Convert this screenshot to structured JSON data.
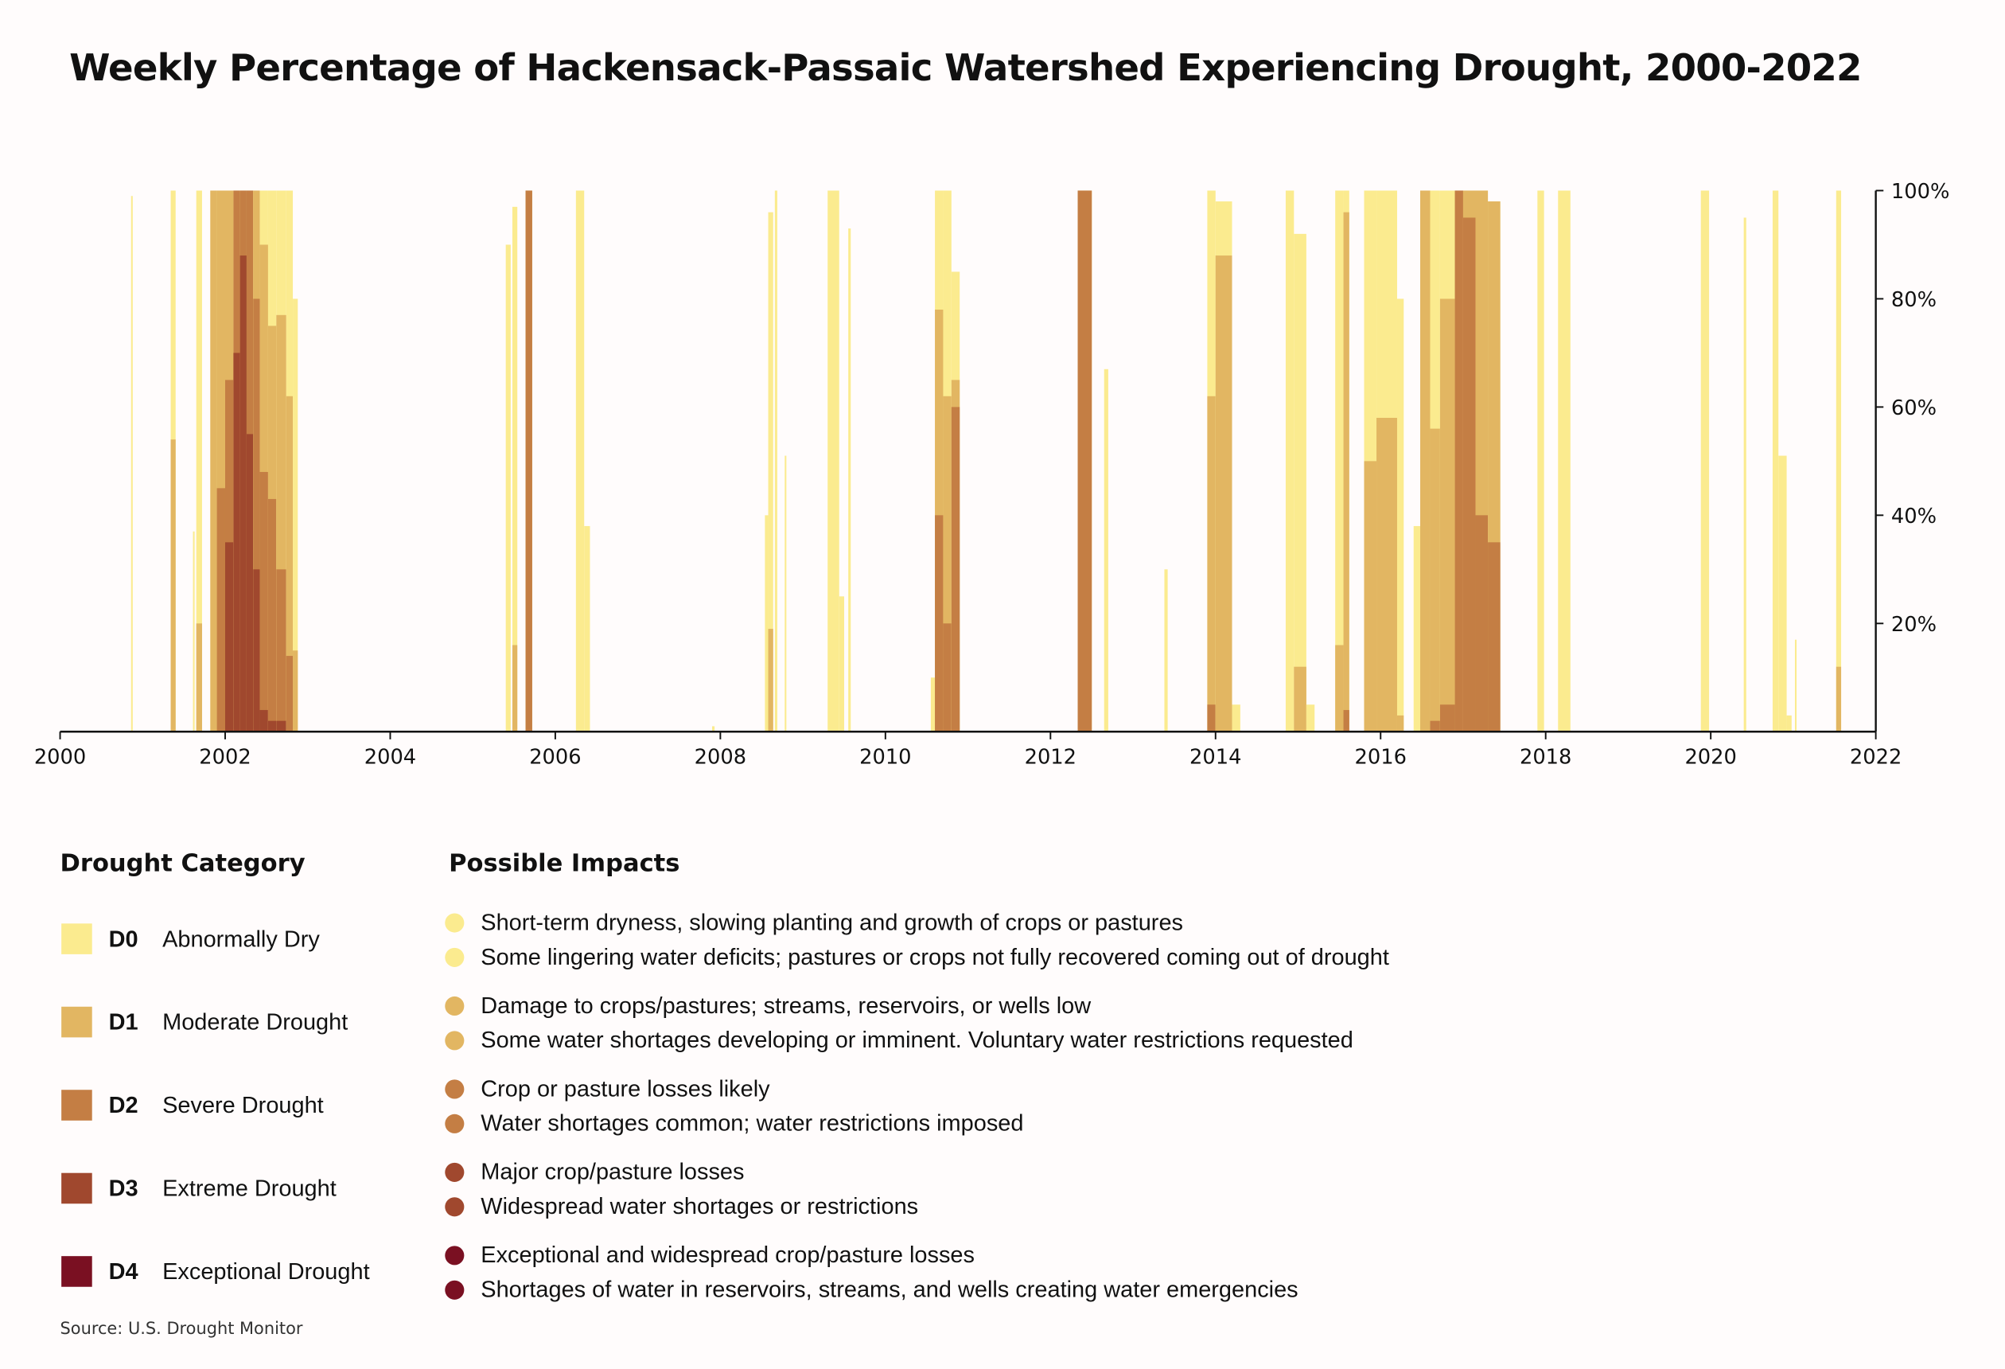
{
  "chart_data": {
    "type": "bar",
    "title": "Weekly Percentage of Hackensack-Passaic Watershed Experiencing Drought, 2000-2022",
    "xlabel": "",
    "ylabel": "",
    "xlim": [
      2000,
      2022
    ],
    "ylim": [
      0,
      100
    ],
    "x_ticks": [
      "2000",
      "2002",
      "2004",
      "2006",
      "2008",
      "2010",
      "2012",
      "2014",
      "2016",
      "2018",
      "2020",
      "2022"
    ],
    "y_ticks": [
      "20%",
      "40%",
      "60%",
      "80%",
      "100%"
    ],
    "y_axis_side": "right",
    "stacking": "overlaid cumulative (percent area in category or worse)",
    "segment_columns": [
      "start_year",
      "end_year",
      "D0",
      "D1",
      "D2",
      "D3",
      "D4"
    ],
    "segments": [
      [
        2000.86,
        2000.88,
        99,
        0,
        0,
        0,
        0
      ],
      [
        2001.34,
        2001.4,
        100,
        54,
        0,
        0,
        0
      ],
      [
        2001.61,
        2001.63,
        37,
        0,
        0,
        0,
        0
      ],
      [
        2001.65,
        2001.72,
        100,
        20,
        0,
        0,
        0
      ],
      [
        2001.82,
        2001.9,
        100,
        100,
        0,
        0,
        0
      ],
      [
        2001.9,
        2002.0,
        100,
        100,
        45,
        0,
        0
      ],
      [
        2002.0,
        2002.1,
        100,
        100,
        65,
        35,
        0
      ],
      [
        2002.1,
        2002.18,
        100,
        100,
        100,
        70,
        0
      ],
      [
        2002.18,
        2002.26,
        100,
        100,
        100,
        88,
        0
      ],
      [
        2002.26,
        2002.34,
        100,
        100,
        100,
        55,
        0
      ],
      [
        2002.34,
        2002.42,
        100,
        100,
        80,
        30,
        0
      ],
      [
        2002.42,
        2002.52,
        100,
        90,
        48,
        4,
        0
      ],
      [
        2002.52,
        2002.62,
        100,
        75,
        43,
        2,
        0
      ],
      [
        2002.62,
        2002.74,
        100,
        77,
        30,
        2,
        0
      ],
      [
        2002.74,
        2002.82,
        100,
        62,
        14,
        0,
        0
      ],
      [
        2002.82,
        2002.88,
        80,
        15,
        0,
        0,
        0
      ],
      [
        2005.4,
        2005.46,
        90,
        0,
        0,
        0,
        0
      ],
      [
        2005.48,
        2005.54,
        97,
        16,
        0,
        0,
        0
      ],
      [
        2005.64,
        2005.72,
        100,
        100,
        100,
        0,
        0
      ],
      [
        2006.25,
        2006.35,
        100,
        0,
        0,
        0,
        0
      ],
      [
        2006.35,
        2006.42,
        38,
        0,
        0,
        0,
        0
      ],
      [
        2007.9,
        2007.93,
        1,
        0,
        0,
        0,
        0
      ],
      [
        2008.54,
        2008.58,
        40,
        0,
        0,
        0,
        0
      ],
      [
        2008.58,
        2008.64,
        96,
        19,
        0,
        0,
        0
      ],
      [
        2008.66,
        2008.69,
        100,
        0,
        0,
        0,
        0
      ],
      [
        2008.78,
        2008.8,
        51,
        0,
        0,
        0,
        0
      ],
      [
        2009.3,
        2009.44,
        100,
        0,
        0,
        0,
        0
      ],
      [
        2009.44,
        2009.5,
        25,
        0,
        0,
        0,
        0
      ],
      [
        2009.55,
        2009.58,
        93,
        0,
        0,
        0,
        0
      ],
      [
        2010.55,
        2010.6,
        10,
        0,
        0,
        0,
        0
      ],
      [
        2010.6,
        2010.7,
        100,
        78,
        40,
        0,
        0
      ],
      [
        2010.7,
        2010.8,
        100,
        62,
        20,
        0,
        0
      ],
      [
        2010.8,
        2010.9,
        85,
        65,
        60,
        0,
        0
      ],
      [
        2012.33,
        2012.5,
        100,
        100,
        100,
        0,
        0
      ],
      [
        2012.65,
        2012.7,
        67,
        0,
        0,
        0,
        0
      ],
      [
        2013.38,
        2013.42,
        30,
        0,
        0,
        0,
        0
      ],
      [
        2013.9,
        2014.0,
        100,
        62,
        5,
        0,
        0
      ],
      [
        2014.0,
        2014.2,
        98,
        88,
        0,
        0,
        0
      ],
      [
        2014.2,
        2014.3,
        5,
        0,
        0,
        0,
        0
      ],
      [
        2014.85,
        2014.95,
        100,
        0,
        0,
        0,
        0
      ],
      [
        2014.95,
        2015.1,
        92,
        12,
        0,
        0,
        0
      ],
      [
        2015.1,
        2015.2,
        5,
        0,
        0,
        0,
        0
      ],
      [
        2015.45,
        2015.55,
        100,
        16,
        0,
        0,
        0
      ],
      [
        2015.55,
        2015.62,
        100,
        96,
        4,
        0,
        0
      ],
      [
        2015.8,
        2015.95,
        100,
        50,
        0,
        0,
        0
      ],
      [
        2015.95,
        2016.2,
        100,
        58,
        0,
        0,
        0
      ],
      [
        2016.2,
        2016.28,
        80,
        3,
        0,
        0,
        0
      ],
      [
        2016.4,
        2016.48,
        38,
        0,
        0,
        0,
        0
      ],
      [
        2016.48,
        2016.6,
        100,
        100,
        0,
        0,
        0
      ],
      [
        2016.6,
        2016.72,
        100,
        56,
        2,
        0,
        0
      ],
      [
        2016.72,
        2016.9,
        100,
        80,
        5,
        0,
        0
      ],
      [
        2016.9,
        2017.0,
        100,
        100,
        100,
        0,
        0
      ],
      [
        2017.0,
        2017.15,
        100,
        100,
        95,
        0,
        0
      ],
      [
        2017.15,
        2017.3,
        100,
        100,
        40,
        0,
        0
      ],
      [
        2017.3,
        2017.45,
        98,
        98,
        35,
        0,
        0
      ],
      [
        2017.9,
        2017.98,
        100,
        0,
        0,
        0,
        0
      ],
      [
        2018.15,
        2018.3,
        100,
        0,
        0,
        0,
        0
      ],
      [
        2019.88,
        2019.98,
        100,
        0,
        0,
        0,
        0
      ],
      [
        2020.4,
        2020.43,
        95,
        0,
        0,
        0,
        0
      ],
      [
        2020.75,
        2020.82,
        100,
        0,
        0,
        0,
        0
      ],
      [
        2020.82,
        2020.92,
        51,
        0,
        0,
        0,
        0
      ],
      [
        2020.92,
        2020.98,
        3,
        0,
        0,
        0,
        0
      ],
      [
        2021.02,
        2021.04,
        17,
        0,
        0,
        0,
        0
      ],
      [
        2021.52,
        2021.58,
        100,
        12,
        0,
        0,
        0
      ]
    ],
    "colors": {
      "D0": "#fbeb8f",
      "D1": "#e2b662",
      "D2": "#c47e44",
      "D3": "#a0482e",
      "D4": "#7a1022"
    }
  },
  "legend": {
    "category_title": "Drought Category",
    "impacts_title": "Possible Impacts",
    "categories": [
      {
        "code": "D0",
        "name": "Abnormally Dry",
        "color": "#fbeb8f",
        "impacts": [
          "Short-term dryness, slowing planting and growth of crops or pastures",
          "Some lingering water deficits; pastures or crops not fully recovered coming out of drought"
        ]
      },
      {
        "code": "D1",
        "name": "Moderate Drought",
        "color": "#e2b662",
        "impacts": [
          "Damage to crops/pastures; streams, reservoirs, or wells low",
          "Some water shortages developing or imminent. Voluntary water restrictions requested"
        ]
      },
      {
        "code": "D2",
        "name": "Severe Drought",
        "color": "#c47e44",
        "impacts": [
          "Crop or pasture losses likely",
          "Water shortages common; water restrictions imposed"
        ]
      },
      {
        "code": "D3",
        "name": "Extreme Drought",
        "color": "#a0482e",
        "impacts": [
          "Major crop/pasture losses",
          "Widespread water shortages or restrictions"
        ]
      },
      {
        "code": "D4",
        "name": "Exceptional Drought",
        "color": "#7a1022",
        "impacts": [
          "Exceptional and widespread crop/pasture losses",
          "Shortages of water in reservoirs, streams, and wells creating water emergencies"
        ]
      }
    ]
  },
  "source": "Source: U.S. Drought Monitor"
}
